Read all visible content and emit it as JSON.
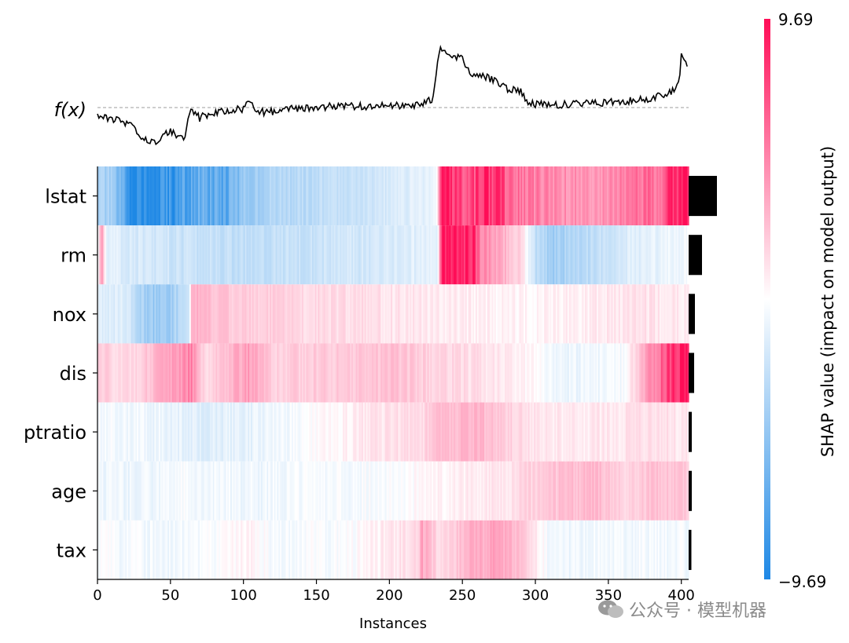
{
  "chart_data": {
    "type": "heatmap",
    "fx_label": "f(x)",
    "xlabel": "Instances",
    "x_ticks": [
      0,
      50,
      100,
      150,
      200,
      250,
      300,
      350,
      400
    ],
    "xlim": [
      0,
      405
    ],
    "features": [
      "lstat",
      "rm",
      "nox",
      "dis",
      "ptratio",
      "age",
      "tax"
    ],
    "mean_abs_shap_relative": [
      0.36,
      0.17,
      0.08,
      0.07,
      0.04,
      0.04,
      0.035
    ],
    "colorbar": {
      "label": "SHAP value (impact on model output)",
      "max_label": "9.69",
      "min_label": "−9.69",
      "vmin": -9.69,
      "vmax": 9.69
    },
    "colors": {
      "positive": "#ff0d57",
      "negative": "#1e88e5",
      "neutral": "#ffffff"
    },
    "segments": [
      {
        "feature": "lstat",
        "values": [
          [
            0,
            -3.5
          ],
          [
            10,
            -4.2
          ],
          [
            22,
            -8.6
          ],
          [
            40,
            -9.69
          ],
          [
            55,
            -8.2
          ],
          [
            70,
            -6.5
          ],
          [
            85,
            -7.4
          ],
          [
            104,
            -4.0
          ],
          [
            130,
            -3.1
          ],
          [
            170,
            -2.4
          ],
          [
            210,
            -1.5
          ],
          [
            232,
            -0.8
          ],
          [
            236,
            9.2
          ],
          [
            255,
            6.5
          ],
          [
            265,
            8.8
          ],
          [
            290,
            5.5
          ],
          [
            310,
            4.6
          ],
          [
            340,
            4.2
          ],
          [
            360,
            5.0
          ],
          [
            385,
            6.0
          ],
          [
            395,
            9.0
          ],
          [
            405,
            9.0
          ]
        ]
      },
      {
        "feature": "rm",
        "values": [
          [
            0,
            -0.8
          ],
          [
            3,
            5.0
          ],
          [
            6,
            -1.2
          ],
          [
            30,
            -1.8
          ],
          [
            60,
            -2.3
          ],
          [
            100,
            -2.6
          ],
          [
            150,
            -2.2
          ],
          [
            200,
            -1.7
          ],
          [
            233,
            -1.0
          ],
          [
            236,
            9.69
          ],
          [
            258,
            9.0
          ],
          [
            262,
            5.2
          ],
          [
            290,
            1.6
          ],
          [
            300,
            -2.6
          ],
          [
            310,
            -4.0
          ],
          [
            335,
            -3.0
          ],
          [
            360,
            -1.6
          ],
          [
            388,
            -0.8
          ],
          [
            400,
            -0.5
          ],
          [
            405,
            -0.5
          ]
        ]
      },
      {
        "feature": "nox",
        "values": [
          [
            0,
            -1.2
          ],
          [
            20,
            -1.6
          ],
          [
            34,
            -4.3
          ],
          [
            50,
            -4.0
          ],
          [
            63,
            -2.4
          ],
          [
            64,
            3.2
          ],
          [
            80,
            2.5
          ],
          [
            100,
            2.0
          ],
          [
            140,
            1.6
          ],
          [
            180,
            1.3
          ],
          [
            240,
            0.8
          ],
          [
            290,
            0.4
          ],
          [
            330,
            0.6
          ],
          [
            370,
            1.2
          ],
          [
            405,
            0.8
          ]
        ]
      },
      {
        "feature": "dis",
        "values": [
          [
            0,
            2.0
          ],
          [
            20,
            1.4
          ],
          [
            40,
            2.8
          ],
          [
            55,
            3.8
          ],
          [
            64,
            5.2
          ],
          [
            73,
            1.5
          ],
          [
            104,
            3.9
          ],
          [
            120,
            1.9
          ],
          [
            160,
            2.1
          ],
          [
            200,
            2.5
          ],
          [
            240,
            1.6
          ],
          [
            280,
            0.9
          ],
          [
            320,
            -0.8
          ],
          [
            360,
            -0.4
          ],
          [
            400,
            9.69
          ],
          [
            405,
            9.69
          ]
        ]
      },
      {
        "feature": "ptratio",
        "values": [
          [
            0,
            -0.4
          ],
          [
            40,
            -0.7
          ],
          [
            70,
            -1.3
          ],
          [
            100,
            -1.1
          ],
          [
            140,
            -0.4
          ],
          [
            180,
            0.9
          ],
          [
            220,
            1.3
          ],
          [
            233,
            2.5
          ],
          [
            260,
            3.0
          ],
          [
            300,
            1.0
          ],
          [
            340,
            0.8
          ],
          [
            380,
            1.3
          ],
          [
            405,
            0.9
          ]
        ]
      },
      {
        "feature": "age",
        "values": [
          [
            0,
            -0.6
          ],
          [
            30,
            -0.8
          ],
          [
            60,
            -0.4
          ],
          [
            100,
            -0.7
          ],
          [
            150,
            -0.4
          ],
          [
            200,
            -0.2
          ],
          [
            240,
            0.5
          ],
          [
            280,
            1.1
          ],
          [
            310,
            2.2
          ],
          [
            340,
            2.9
          ],
          [
            360,
            1.8
          ],
          [
            390,
            2.6
          ],
          [
            405,
            2.0
          ]
        ]
      },
      {
        "feature": "tax",
        "values": [
          [
            0,
            -0.3
          ],
          [
            60,
            -0.6
          ],
          [
            104,
            0.4
          ],
          [
            120,
            -0.3
          ],
          [
            170,
            -0.2
          ],
          [
            220,
            1.5
          ],
          [
            222,
            3.6
          ],
          [
            235,
            1.2
          ],
          [
            255,
            3.0
          ],
          [
            275,
            3.6
          ],
          [
            295,
            1.8
          ],
          [
            310,
            -0.7
          ],
          [
            360,
            -0.5
          ],
          [
            405,
            -0.4
          ]
        ]
      }
    ],
    "fx_curve": [
      [
        0,
        -0.1
      ],
      [
        10,
        -0.17
      ],
      [
        20,
        -0.22
      ],
      [
        25,
        -0.32
      ],
      [
        30,
        -0.45
      ],
      [
        40,
        -0.48
      ],
      [
        50,
        -0.35
      ],
      [
        60,
        -0.45
      ],
      [
        64,
        0.0
      ],
      [
        70,
        -0.15
      ],
      [
        80,
        -0.07
      ],
      [
        100,
        -0.02
      ],
      [
        104,
        0.1
      ],
      [
        110,
        -0.08
      ],
      [
        140,
        0.0
      ],
      [
        170,
        0.02
      ],
      [
        200,
        0.02
      ],
      [
        220,
        0.05
      ],
      [
        230,
        0.15
      ],
      [
        234,
        0.9
      ],
      [
        240,
        0.85
      ],
      [
        250,
        0.78
      ],
      [
        255,
        0.55
      ],
      [
        270,
        0.45
      ],
      [
        280,
        0.3
      ],
      [
        290,
        0.25
      ],
      [
        295,
        0.1
      ],
      [
        300,
        0.05
      ],
      [
        320,
        0.05
      ],
      [
        340,
        0.07
      ],
      [
        360,
        0.1
      ],
      [
        380,
        0.15
      ],
      [
        390,
        0.2
      ],
      [
        398,
        0.35
      ],
      [
        400,
        0.8
      ],
      [
        404,
        0.7
      ]
    ]
  },
  "watermark": {
    "text": "公众号 · 模型机器"
  }
}
